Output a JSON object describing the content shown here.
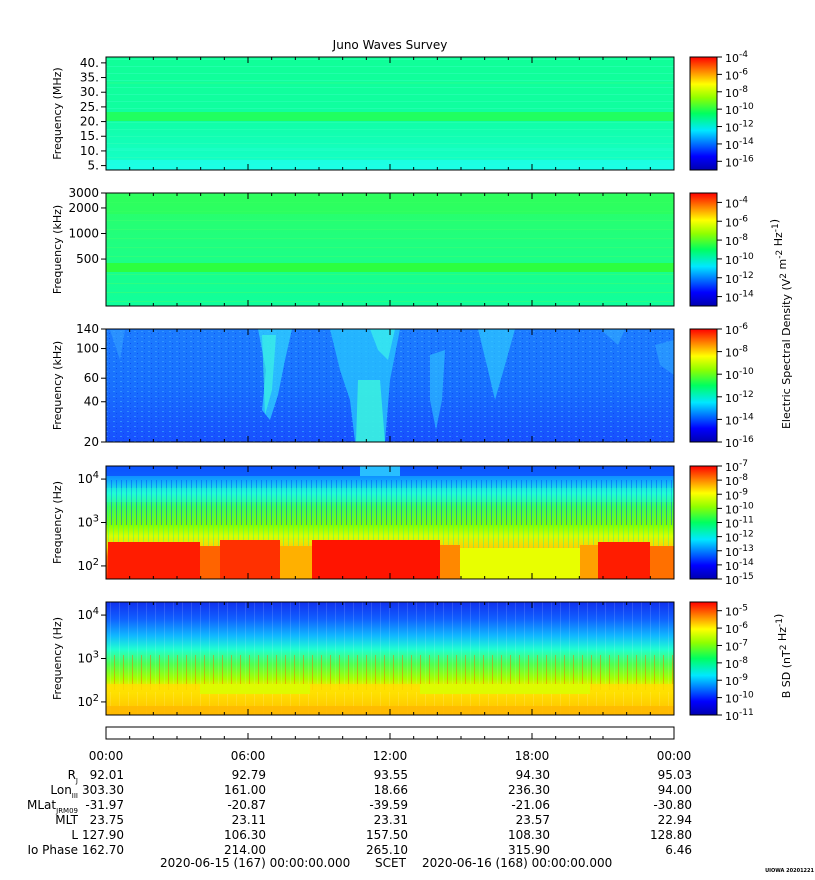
{
  "chart_data": {
    "type": "heatmap",
    "title": "Juno Waves Survey",
    "x_ticks": [
      "00:00",
      "06:00",
      "12:00",
      "18:00",
      "00:00"
    ],
    "panels": [
      {
        "ylabel": "Frequency (MHz)",
        "yticks": [
          "40.",
          "35.",
          "30.",
          "25.",
          "20.",
          "15.",
          "10.",
          "5."
        ],
        "ytick_values": [
          40,
          35,
          30,
          25,
          20,
          15,
          10,
          5
        ],
        "ylim": [
          3.5,
          42
        ],
        "yscale": "linear",
        "colorbar": {
          "ticks": [
            "10^-4",
            "10^-6",
            "10^-8",
            "10^-10",
            "10^-12",
            "10^-14",
            "10^-16"
          ],
          "exponents": [
            -4,
            -6,
            -8,
            -10,
            -12,
            -14,
            -16
          ],
          "range": [
            -17,
            -4
          ],
          "label": ""
        }
      },
      {
        "ylabel": "Frequency (kHz)",
        "yticks": [
          "3000",
          "2000",
          "1000",
          "500"
        ],
        "ytick_values": [
          3000,
          2000,
          1000,
          500
        ],
        "ylim": [
          140,
          3000
        ],
        "yscale": "log",
        "colorbar": {
          "ticks": [
            "10^-4",
            "10^-6",
            "10^-8",
            "10^-10",
            "10^-12",
            "10^-14"
          ],
          "exponents": [
            -4,
            -6,
            -8,
            -10,
            -12,
            -14
          ],
          "range": [
            -15,
            -3
          ],
          "label": "Electric Spectral Density (V^2 m^-2 Hz^-1)"
        }
      },
      {
        "ylabel": "Frequency (kHz)",
        "yticks": [
          "140",
          "100",
          "60",
          "40",
          "20"
        ],
        "ytick_values": [
          140,
          100,
          60,
          40,
          20
        ],
        "ylim": [
          20,
          140
        ],
        "yscale": "log",
        "colorbar": {
          "ticks": [
            "10^-6",
            "10^-8",
            "10^-10",
            "10^-12",
            "10^-14",
            "10^-16"
          ],
          "exponents": [
            -6,
            -8,
            -10,
            -12,
            -14,
            -16
          ],
          "range": [
            -16,
            -6
          ],
          "label": ""
        }
      },
      {
        "ylabel": "Frequency (Hz)",
        "yticks": [
          "10^4",
          "10^3",
          "10^2"
        ],
        "ytick_values": [
          10000,
          1000,
          100
        ],
        "ylim": [
          50,
          20000
        ],
        "yscale": "log",
        "colorbar": {
          "ticks": [
            "10^-7",
            "10^-8",
            "10^-9",
            "10^-10",
            "10^-11",
            "10^-12",
            "10^-13",
            "10^-14",
            "10^-15"
          ],
          "exponents": [
            -7,
            -8,
            -9,
            -10,
            -11,
            -12,
            -13,
            -14,
            -15
          ],
          "range": [
            -15,
            -7
          ],
          "label": ""
        }
      },
      {
        "ylabel": "Frequency (Hz)",
        "yticks": [
          "10^4",
          "10^3",
          "10^2"
        ],
        "ytick_values": [
          10000,
          1000,
          100
        ],
        "ylim": [
          50,
          20000
        ],
        "yscale": "log",
        "colorbar": {
          "ticks": [
            "10^-5",
            "10^-6",
            "10^-7",
            "10^-8",
            "10^-9",
            "10^-10",
            "10^-11"
          ],
          "exponents": [
            -5,
            -6,
            -7,
            -8,
            -9,
            -10,
            -11
          ],
          "range": [
            -11,
            -4.5
          ],
          "label": "B SD (nT^2 Hz^-1)"
        }
      }
    ],
    "ephemeris": {
      "times": [
        "00:00",
        "06:00",
        "12:00",
        "18:00",
        "00:00"
      ],
      "rows": [
        {
          "label": "R",
          "sub": "J",
          "values": [
            "92.01",
            "92.79",
            "93.55",
            "94.30",
            "95.03"
          ]
        },
        {
          "label": "Lon",
          "sub": "III",
          "values": [
            "303.30",
            "161.00",
            "18.66",
            "236.30",
            "94.00"
          ]
        },
        {
          "label": "MLat",
          "sub": "JRM09",
          "values": [
            "-31.97",
            "-20.87",
            "-39.59",
            "-21.06",
            "-30.80"
          ]
        },
        {
          "label": "MLT",
          "sub": "",
          "values": [
            "23.75",
            "23.11",
            "23.31",
            "23.57",
            "22.94"
          ]
        },
        {
          "label": "L",
          "sub": "",
          "values": [
            "127.90",
            "106.30",
            "157.50",
            "108.30",
            "128.80"
          ]
        },
        {
          "label": "Io Phase",
          "sub": "",
          "values": [
            "162.70",
            "214.00",
            "265.10",
            "315.90",
            "6.46"
          ]
        }
      ]
    },
    "footer": {
      "start": "2020-06-15 (167) 00:00:00.000",
      "scet": "SCET",
      "end": "2020-06-16 (168) 00:00:00.000"
    },
    "stamp": "UIOWA 20201221"
  }
}
